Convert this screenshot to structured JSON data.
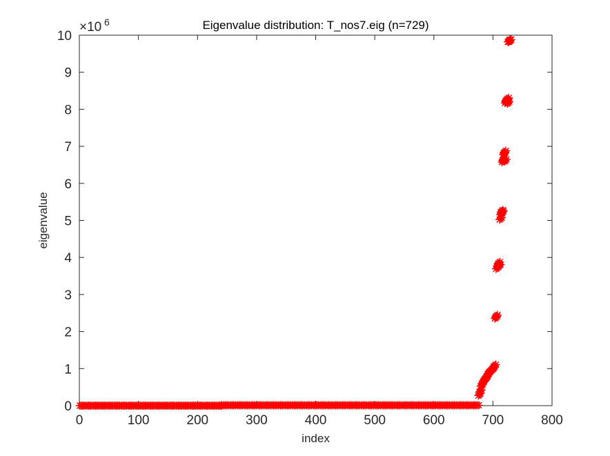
{
  "chart_data": {
    "type": "scatter",
    "title": "Eigenvalue distribution: T_nos7.eig (n=729)",
    "xlabel": "index",
    "ylabel": "eigenvalue",
    "xlim": [
      0,
      800
    ],
    "ylim": [
      0,
      10
    ],
    "y_multiplier_label": "×10",
    "y_multiplier_exponent": "6",
    "xticks": [
      0,
      100,
      200,
      300,
      400,
      500,
      600,
      700,
      800
    ],
    "yticks": [
      0,
      1,
      2,
      3,
      4,
      5,
      6,
      7,
      8,
      9,
      10
    ],
    "marker": "*",
    "marker_color": "#ff0000",
    "grid": false,
    "series": [
      {
        "x": [
          1,
          240,
          241,
          676,
          677,
          679,
          681,
          683,
          685,
          687,
          689,
          691,
          693,
          695,
          697,
          699,
          701,
          703,
          705,
          706,
          707,
          709,
          710,
          711,
          713,
          714,
          715,
          716,
          717,
          718,
          719,
          720,
          721,
          722,
          723,
          724,
          725,
          726,
          727,
          728,
          729
        ],
        "y": [
          0.0,
          0.0,
          0.01,
          0.01,
          0.3,
          0.4,
          0.55,
          0.62,
          0.68,
          0.72,
          0.76,
          0.82,
          0.88,
          0.92,
          0.95,
          0.98,
          1.02,
          1.08,
          2.38,
          2.42,
          3.72,
          3.8,
          3.85,
          3.78,
          5.05,
          5.18,
          5.25,
          5.22,
          6.6,
          6.65,
          6.8,
          6.85,
          6.62,
          8.2,
          8.25,
          8.22,
          8.28,
          8.18,
          9.85,
          9.85,
          9.85
        ]
      }
    ]
  }
}
